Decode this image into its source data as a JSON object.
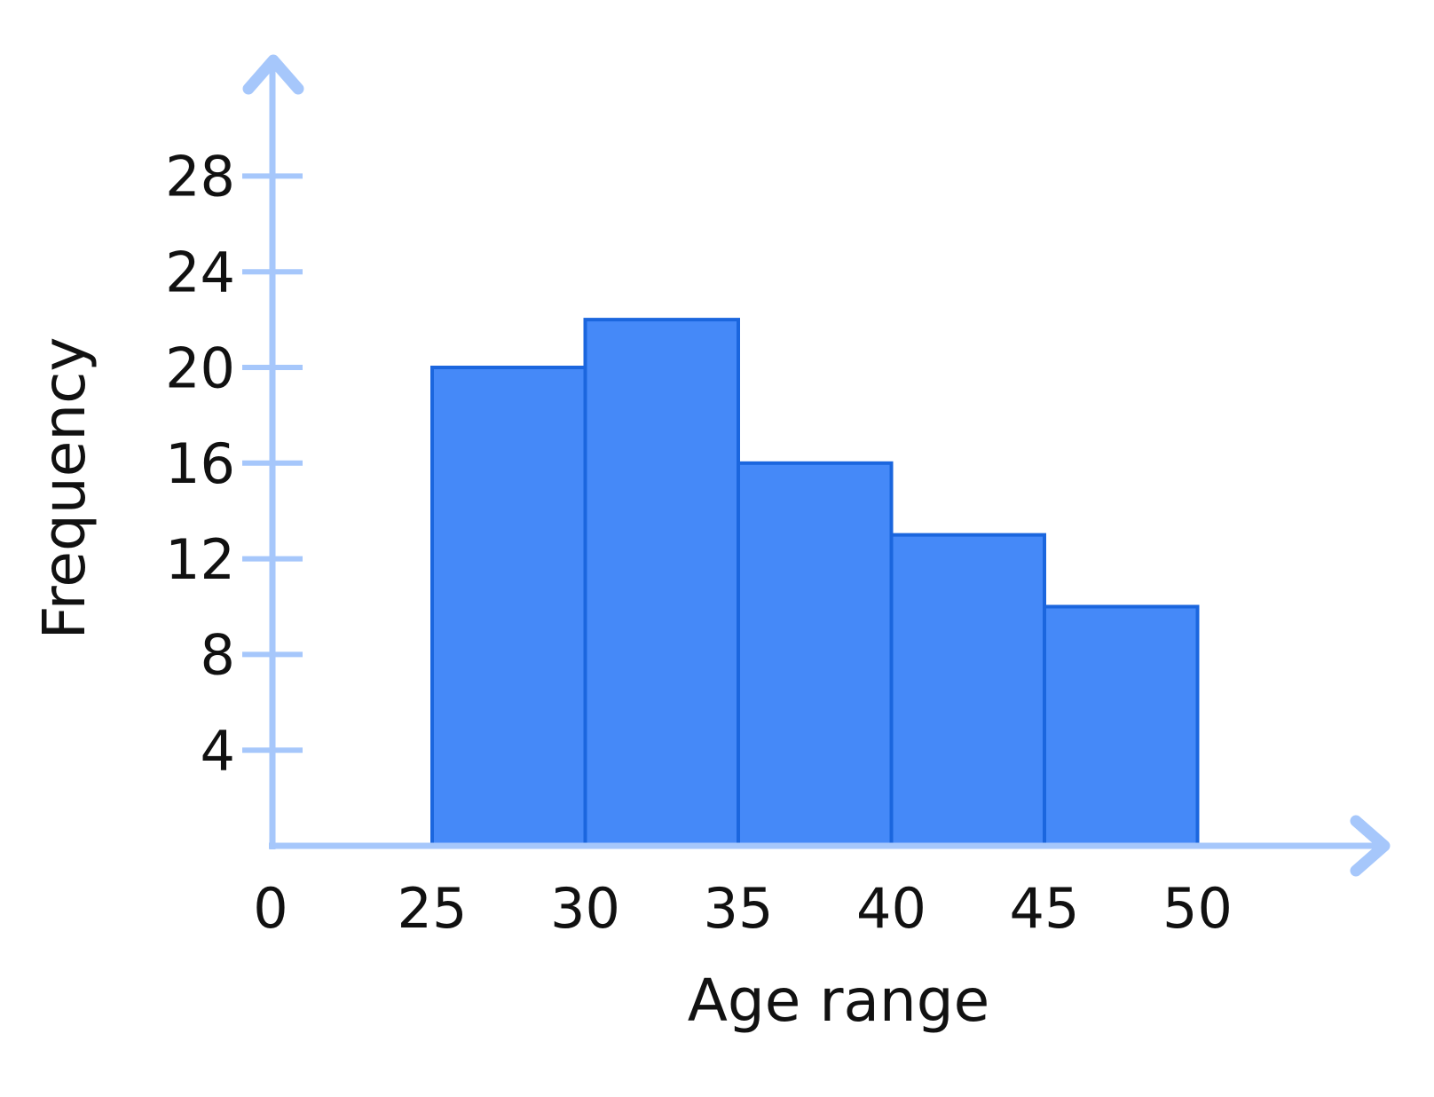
{
  "chart_data": {
    "type": "bar",
    "subtype": "histogram",
    "title": "",
    "xlabel": "Age range",
    "ylabel": "Frequency",
    "bin_edges": [
      25,
      30,
      35,
      40,
      45,
      50
    ],
    "categories": [
      "25-30",
      "30-35",
      "35-40",
      "40-45",
      "45-50"
    ],
    "values": [
      20,
      22,
      16,
      13,
      10
    ],
    "y_ticks": [
      4,
      8,
      12,
      16,
      20,
      24,
      28
    ],
    "x_tick_labels": [
      0,
      25,
      30,
      35,
      40,
      45,
      50
    ],
    "ylim": [
      0,
      30
    ],
    "grid": "off",
    "legend": "none",
    "colors": {
      "bar_fill": "#4589f8",
      "bar_border": "#1b66de",
      "axis": "#a6c7fb",
      "text": "#111111",
      "background": "#ffffff"
    }
  }
}
